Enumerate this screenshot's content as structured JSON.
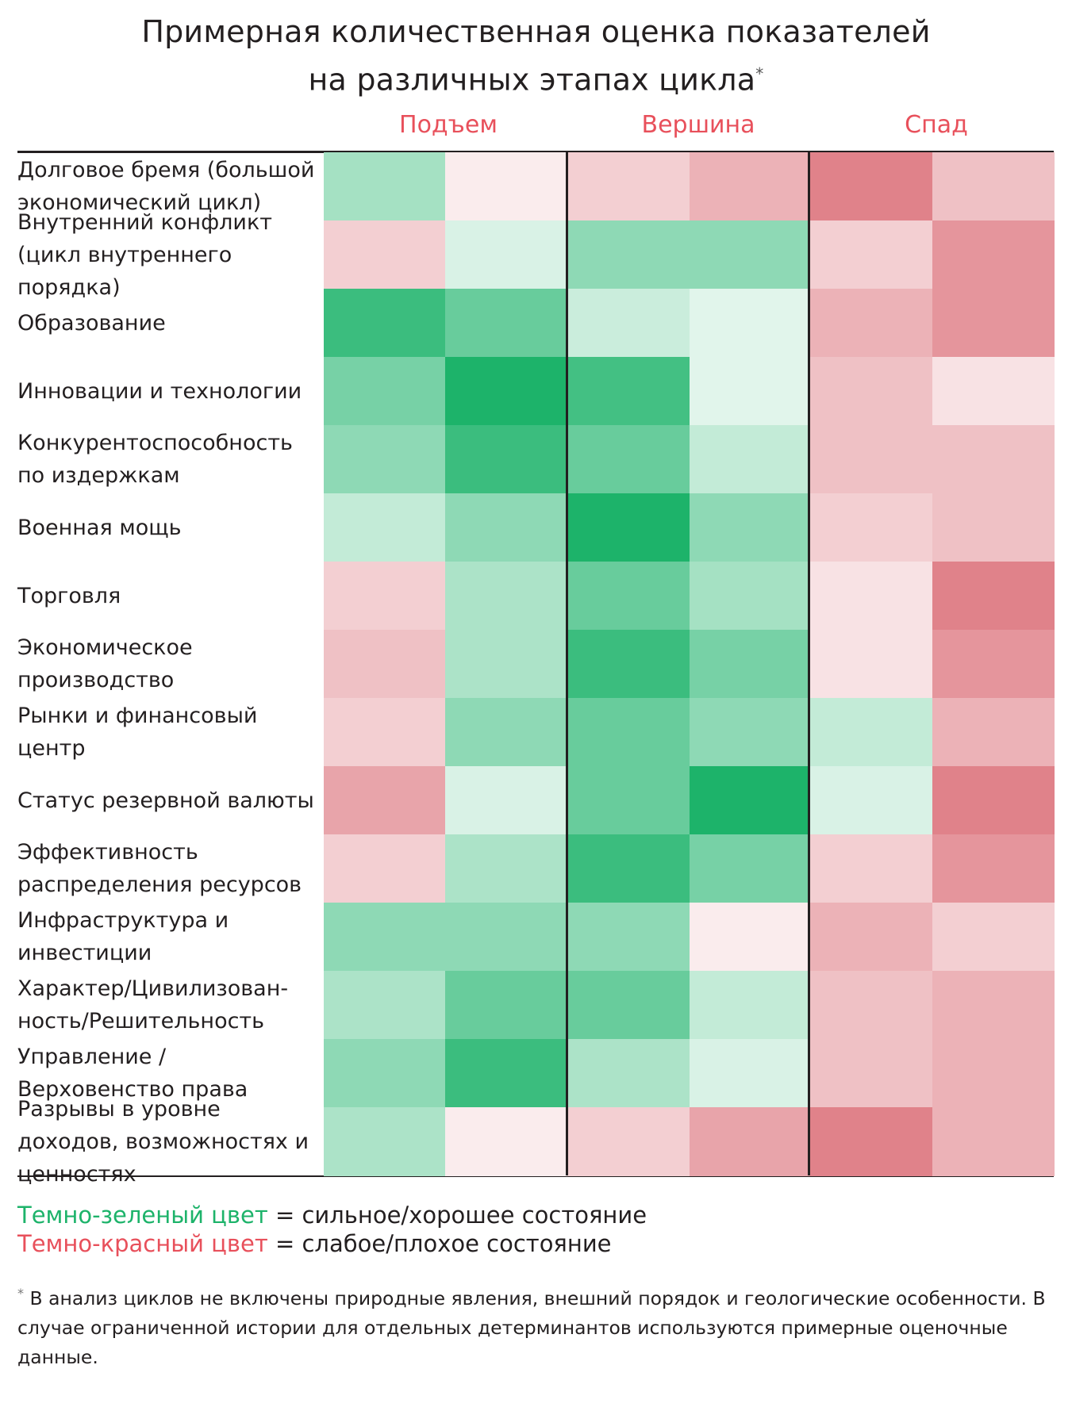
{
  "chart_data": {
    "type": "heatmap",
    "title_line1": "Примерная количественная оценка показателей",
    "title_line2": "на различных этапах цикла",
    "title_mark": "*",
    "phases": [
      "Подъем",
      "Вершина",
      "Спад"
    ],
    "scale_note": "values from -3 (dark red, weak/bad) to +3 (dark green, strong/good)",
    "rows": [
      {
        "label": "Долговое бремя (большой экономический цикл)",
        "values": [
          1.2,
          -0.4,
          -1.0,
          -1.6,
          -2.6,
          -1.3
        ]
      },
      {
        "label": "Внутренний конфликт (цикл внутреннего порядка)",
        "values": [
          -1.0,
          0.5,
          1.5,
          1.5,
          -1.0,
          -2.2
        ]
      },
      {
        "label": "Образование",
        "values": [
          2.6,
          2.0,
          0.7,
          0.4,
          -1.6,
          -2.2
        ]
      },
      {
        "label": "Инновации и технологии",
        "values": [
          1.8,
          3.0,
          2.5,
          0.4,
          -1.3,
          -0.6
        ]
      },
      {
        "label": "Конкурентоспособность по издержкам",
        "values": [
          1.5,
          2.6,
          2.0,
          0.8,
          -1.3,
          -1.3
        ]
      },
      {
        "label": "Военная мощь",
        "values": [
          0.8,
          1.5,
          3.0,
          1.5,
          -1.0,
          -1.3
        ]
      },
      {
        "label": "Торговля",
        "values": [
          -1.0,
          1.1,
          2.0,
          1.2,
          -0.6,
          -2.6
        ]
      },
      {
        "label": "Экономическое производство",
        "values": [
          -1.3,
          1.1,
          2.6,
          1.8,
          -0.6,
          -2.2
        ]
      },
      {
        "label": "Рынки и финансовый центр",
        "values": [
          -1.0,
          1.5,
          2.0,
          1.5,
          0.8,
          -1.6
        ]
      },
      {
        "label": "Статус резервной валюты",
        "values": [
          -1.9,
          0.5,
          2.0,
          3.0,
          0.5,
          -2.6
        ]
      },
      {
        "label": "Эффективность распределения ресурсов",
        "values": [
          -1.0,
          1.1,
          2.6,
          1.8,
          -1.0,
          -2.2
        ]
      },
      {
        "label": "Инфраструктура и инвестиции",
        "values": [
          1.5,
          1.5,
          1.5,
          -0.4,
          -1.6,
          -1.0
        ]
      },
      {
        "label": "Характер/Цивилизован-ность/Решительность",
        "values": [
          1.1,
          2.0,
          2.0,
          0.8,
          -1.3,
          -1.6
        ]
      },
      {
        "label": "Управление / Верховенство права",
        "values": [
          1.5,
          2.6,
          1.1,
          0.5,
          -1.3,
          -1.6
        ]
      },
      {
        "label": "Разрывы в уровне доходов, возможностях и ценностях",
        "values": [
          1.1,
          -0.4,
          -1.0,
          -1.9,
          -2.6,
          -1.6
        ]
      }
    ],
    "legend": [
      {
        "term": "Темно-зеленый цвет",
        "meaning": " = сильное/хорошее состояние",
        "color": "#1db36a"
      },
      {
        "term": "Темно-красный цвет",
        "meaning": " = слабое/плохое состояние",
        "color": "#e8505b"
      }
    ],
    "footnote": "В анализ циклов не включены природные явления, внешний порядок и геологические особенности. В случае ограниченной истории для отдельных детерминантов используются примерные оценочные данные.",
    "footnote_mark": "*",
    "colors": {
      "green": "#1db36a",
      "red": "#db6f78",
      "neutral": "#ffffff",
      "accent": "#e8505b"
    }
  }
}
